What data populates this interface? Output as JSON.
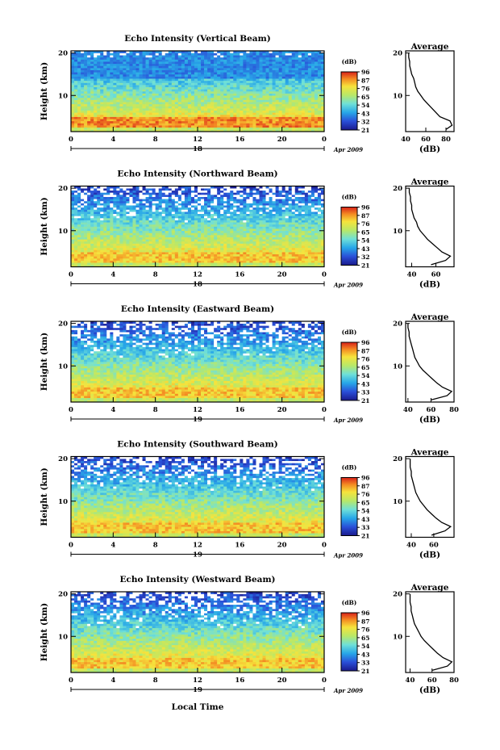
{
  "figure": {
    "xlabel": "Local Time",
    "date_label": "Apr 2009",
    "average_title": "Average",
    "unit_label": "(dB)",
    "height_label": "Height (km)",
    "colorbar_ticks_note": "per panel"
  },
  "chart_data": [
    {
      "type": "heatmap",
      "title": "Echo Intensity (Vertical Beam)",
      "ylabel": "Height (km)",
      "xlabel": "",
      "x_ticks": [
        "0",
        "4",
        "8",
        "12",
        "16",
        "20",
        "0"
      ],
      "x_range_hours": [
        0,
        24
      ],
      "y_ticks": [
        "10",
        "20"
      ],
      "y_range_km": [
        1.5,
        20.5
      ],
      "day_label": "18",
      "colorbar_label": "(dB)",
      "colorbar_ticks": [
        "96",
        "87",
        "76",
        "65",
        "54",
        "43",
        "32",
        "21"
      ],
      "profile": {
        "title": "Average",
        "xlabel": "(dB)",
        "x_ticks": [
          "40",
          "60",
          "80"
        ],
        "x_range": [
          40,
          88
        ],
        "y_ticks": [
          "10",
          "20"
        ],
        "height_km": [
          2,
          3,
          4,
          5,
          6,
          7,
          8,
          9,
          10,
          11,
          12,
          13,
          14,
          15,
          16,
          17,
          18,
          19,
          20
        ],
        "value_db": [
          80,
          86,
          84,
          74,
          70,
          66,
          62,
          58,
          55,
          52,
          50,
          49,
          48,
          46,
          45,
          44,
          44,
          43,
          43
        ]
      }
    },
    {
      "type": "heatmap",
      "title": "Echo Intensity (Northward Beam)",
      "ylabel": "Height (km)",
      "xlabel": "",
      "x_ticks": [
        "0",
        "4",
        "8",
        "12",
        "16",
        "20",
        "0"
      ],
      "x_range_hours": [
        0,
        24
      ],
      "y_ticks": [
        "10",
        "20"
      ],
      "y_range_km": [
        1.5,
        20.5
      ],
      "day_label": "18",
      "colorbar_label": "(dB)",
      "colorbar_ticks": [
        "96",
        "87",
        "76",
        "65",
        "54",
        "43",
        "32",
        "21"
      ],
      "profile": {
        "title": "Average",
        "xlabel": "(dB)",
        "x_ticks": [
          "40",
          "60"
        ],
        "x_range": [
          35,
          75
        ],
        "y_ticks": [
          "10",
          "20"
        ],
        "height_km": [
          2,
          3,
          4,
          5,
          6,
          7,
          8,
          9,
          10,
          11,
          12,
          13,
          14,
          15,
          16,
          17,
          18,
          19,
          20
        ],
        "value_db": [
          56,
          68,
          72,
          65,
          61,
          57,
          53,
          50,
          47,
          45,
          44,
          42,
          41,
          40,
          40,
          39,
          39,
          38,
          38
        ]
      }
    },
    {
      "type": "heatmap",
      "title": "Echo Intensity (Eastward Beam)",
      "ylabel": "Height (km)",
      "xlabel": "",
      "x_ticks": [
        "0",
        "4",
        "8",
        "12",
        "16",
        "20",
        "0"
      ],
      "x_range_hours": [
        0,
        24
      ],
      "y_ticks": [
        "10",
        "20"
      ],
      "y_range_km": [
        1.5,
        20.5
      ],
      "day_label": "19",
      "colorbar_label": "(dB)",
      "colorbar_ticks": [
        "96",
        "87",
        "76",
        "65",
        "54",
        "43",
        "33",
        "21"
      ],
      "profile": {
        "title": "Average",
        "xlabel": "(dB)",
        "x_ticks": [
          "40",
          "60",
          "80"
        ],
        "x_range": [
          38,
          80
        ],
        "y_ticks": [
          "10",
          "20"
        ],
        "height_km": [
          2,
          3,
          4,
          5,
          6,
          7,
          8,
          9,
          10,
          11,
          12,
          13,
          14,
          15,
          16,
          17,
          18,
          19,
          20
        ],
        "value_db": [
          60,
          74,
          78,
          70,
          65,
          61,
          57,
          53,
          50,
          48,
          46,
          45,
          44,
          43,
          42,
          41,
          41,
          40,
          40
        ]
      }
    },
    {
      "type": "heatmap",
      "title": "Echo Intensity (Southward Beam)",
      "ylabel": "Height (km)",
      "xlabel": "",
      "x_ticks": [
        "0",
        "4",
        "8",
        "12",
        "16",
        "20",
        "0"
      ],
      "x_range_hours": [
        0,
        24
      ],
      "y_ticks": [
        "10",
        "20"
      ],
      "y_range_km": [
        1.5,
        20.5
      ],
      "day_label": "19",
      "colorbar_label": "(dB)",
      "colorbar_ticks": [
        "96",
        "87",
        "76",
        "65",
        "54",
        "43",
        "33",
        "21"
      ],
      "profile": {
        "title": "Average",
        "xlabel": "(dB)",
        "x_ticks": [
          "40",
          "60"
        ],
        "x_range": [
          35,
          78
        ],
        "y_ticks": [
          "10",
          "20"
        ],
        "height_km": [
          2,
          3,
          4,
          5,
          6,
          7,
          8,
          9,
          10,
          11,
          12,
          13,
          14,
          15,
          16,
          17,
          18,
          19,
          20
        ],
        "value_db": [
          58,
          70,
          75,
          67,
          62,
          58,
          54,
          51,
          48,
          46,
          44,
          43,
          42,
          41,
          40,
          40,
          39,
          39,
          39
        ]
      }
    },
    {
      "type": "heatmap",
      "title": "Echo Intensity (Westward Beam)",
      "ylabel": "Height (km)",
      "xlabel": "Local Time",
      "x_ticks": [
        "0",
        "4",
        "8",
        "12",
        "16",
        "20",
        "0"
      ],
      "x_range_hours": [
        0,
        24
      ],
      "y_ticks": [
        "10",
        "20"
      ],
      "y_range_km": [
        1.5,
        20.5
      ],
      "day_label": "19",
      "colorbar_label": "(dB)",
      "colorbar_ticks": [
        "96",
        "87",
        "76",
        "65",
        "54",
        "43",
        "33",
        "21"
      ],
      "profile": {
        "title": "Average",
        "xlabel": "(dB)",
        "x_ticks": [
          "40",
          "60",
          "80"
        ],
        "x_range": [
          36,
          80
        ],
        "y_ticks": [
          "10",
          "20"
        ],
        "height_km": [
          2,
          3,
          4,
          5,
          6,
          7,
          8,
          9,
          10,
          11,
          12,
          13,
          14,
          15,
          16,
          17,
          18,
          19,
          20
        ],
        "value_db": [
          60,
          74,
          78,
          70,
          65,
          61,
          57,
          53,
          50,
          48,
          46,
          44,
          43,
          42,
          41,
          41,
          40,
          40,
          40
        ]
      }
    }
  ]
}
